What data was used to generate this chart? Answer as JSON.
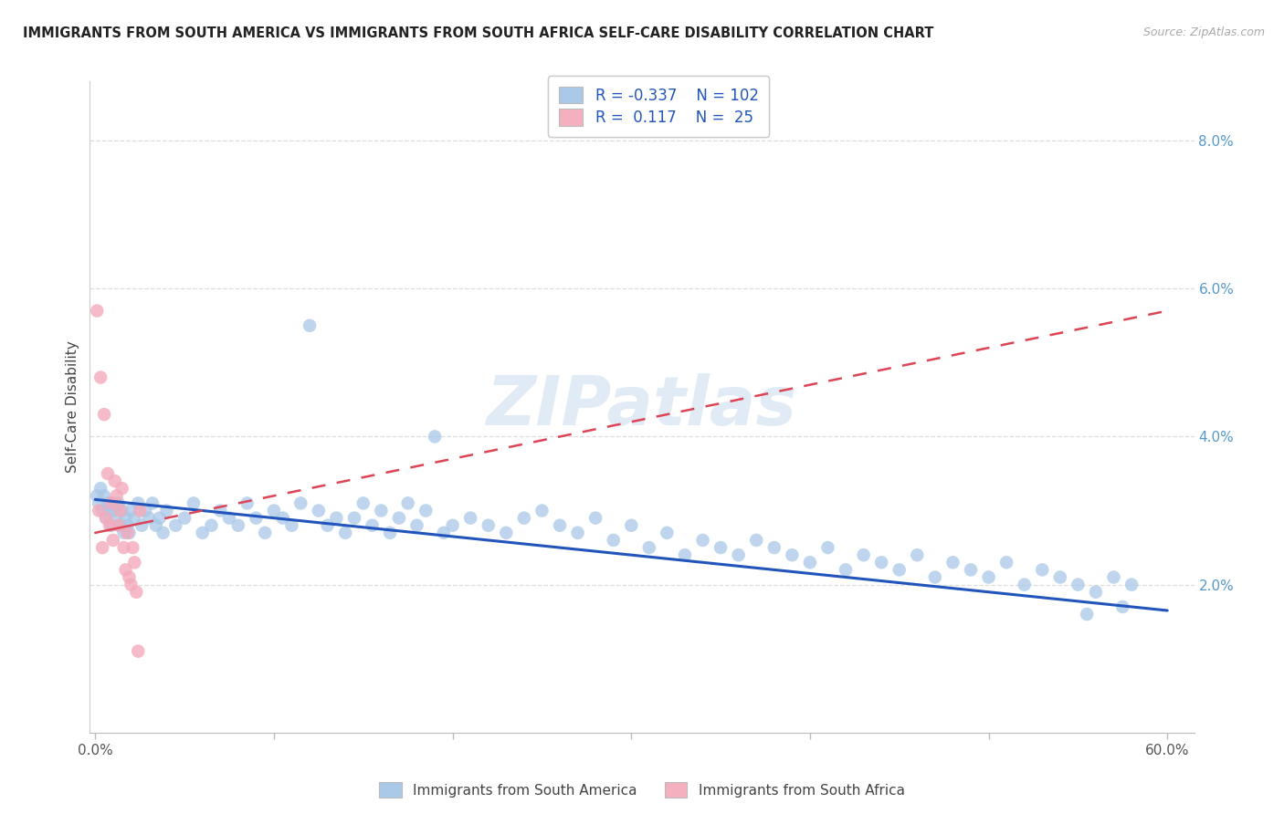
{
  "title": "IMMIGRANTS FROM SOUTH AMERICA VS IMMIGRANTS FROM SOUTH AFRICA SELF-CARE DISABILITY CORRELATION CHART",
  "source": "Source: ZipAtlas.com",
  "ylabel": "Self-Care Disability",
  "xlim": [
    -0.003,
    0.615
  ],
  "ylim": [
    0.0,
    0.088
  ],
  "xtick_vals": [
    0.0,
    0.1,
    0.2,
    0.3,
    0.4,
    0.5,
    0.6
  ],
  "xticklabels": [
    "0.0%",
    "",
    "",
    "",
    "",
    "",
    "60.0%"
  ],
  "ytick_vals": [
    0.0,
    0.02,
    0.04,
    0.06,
    0.08
  ],
  "yticklabels": [
    "",
    "2.0%",
    "4.0%",
    "6.0%",
    "8.0%"
  ],
  "blue_scatter_color": "#a8c8e8",
  "pink_scatter_color": "#f4aabb",
  "blue_line_color": "#2255bb",
  "pink_line_color": "#dd4455",
  "legend_blue_R": "-0.337",
  "legend_blue_N": "102",
  "legend_pink_R": "0.117",
  "legend_pink_N": "25",
  "watermark": "ZIPatlas",
  "grid_color": "#dddddd",
  "title_color": "#222222",
  "source_color": "#aaaaaa",
  "tick_color": "#5599cc",
  "bottom_legend_labels": [
    "Immigrants from South America",
    "Immigrants from South Africa"
  ],
  "sa_x": [
    0.001,
    0.002,
    0.003,
    0.004,
    0.005,
    0.006,
    0.007,
    0.008,
    0.009,
    0.01,
    0.011,
    0.012,
    0.013,
    0.014,
    0.015,
    0.016,
    0.017,
    0.018,
    0.019,
    0.02,
    0.022,
    0.024,
    0.026,
    0.028,
    0.03,
    0.032,
    0.034,
    0.036,
    0.038,
    0.04,
    0.045,
    0.05,
    0.055,
    0.06,
    0.065,
    0.07,
    0.075,
    0.08,
    0.085,
    0.09,
    0.095,
    0.1,
    0.105,
    0.11,
    0.115,
    0.12,
    0.125,
    0.13,
    0.135,
    0.14,
    0.145,
    0.15,
    0.155,
    0.16,
    0.165,
    0.17,
    0.175,
    0.18,
    0.185,
    0.19,
    0.195,
    0.2,
    0.21,
    0.22,
    0.23,
    0.24,
    0.25,
    0.26,
    0.27,
    0.28,
    0.29,
    0.3,
    0.31,
    0.32,
    0.33,
    0.34,
    0.35,
    0.36,
    0.37,
    0.38,
    0.39,
    0.4,
    0.41,
    0.42,
    0.43,
    0.44,
    0.45,
    0.46,
    0.47,
    0.48,
    0.49,
    0.5,
    0.51,
    0.52,
    0.53,
    0.54,
    0.55,
    0.56,
    0.57,
    0.58,
    0.555,
    0.575
  ],
  "sa_y": [
    0.032,
    0.031,
    0.033,
    0.03,
    0.032,
    0.029,
    0.031,
    0.03,
    0.028,
    0.031,
    0.03,
    0.029,
    0.031,
    0.028,
    0.03,
    0.027,
    0.029,
    0.028,
    0.027,
    0.03,
    0.029,
    0.031,
    0.028,
    0.03,
    0.029,
    0.031,
    0.028,
    0.029,
    0.027,
    0.03,
    0.028,
    0.029,
    0.031,
    0.027,
    0.028,
    0.03,
    0.029,
    0.028,
    0.031,
    0.029,
    0.027,
    0.03,
    0.029,
    0.028,
    0.031,
    0.055,
    0.03,
    0.028,
    0.029,
    0.027,
    0.029,
    0.031,
    0.028,
    0.03,
    0.027,
    0.029,
    0.031,
    0.028,
    0.03,
    0.04,
    0.027,
    0.028,
    0.029,
    0.028,
    0.027,
    0.029,
    0.03,
    0.028,
    0.027,
    0.029,
    0.026,
    0.028,
    0.025,
    0.027,
    0.024,
    0.026,
    0.025,
    0.024,
    0.026,
    0.025,
    0.024,
    0.023,
    0.025,
    0.022,
    0.024,
    0.023,
    0.022,
    0.024,
    0.021,
    0.023,
    0.022,
    0.021,
    0.023,
    0.02,
    0.022,
    0.021,
    0.02,
    0.019,
    0.021,
    0.02,
    0.016,
    0.017
  ],
  "sf_x": [
    0.001,
    0.002,
    0.003,
    0.004,
    0.005,
    0.006,
    0.007,
    0.008,
    0.009,
    0.01,
    0.011,
    0.012,
    0.013,
    0.014,
    0.015,
    0.016,
    0.017,
    0.018,
    0.019,
    0.02,
    0.021,
    0.022,
    0.023,
    0.024,
    0.025
  ],
  "sf_y": [
    0.057,
    0.03,
    0.048,
    0.025,
    0.043,
    0.029,
    0.035,
    0.028,
    0.031,
    0.026,
    0.034,
    0.032,
    0.028,
    0.03,
    0.033,
    0.025,
    0.022,
    0.027,
    0.021,
    0.02,
    0.025,
    0.023,
    0.019,
    0.011,
    0.03
  ],
  "blue_line_x0": 0.0,
  "blue_line_y0": 0.0315,
  "blue_line_x1": 0.6,
  "blue_line_y1": 0.0165,
  "pink_line_x0": 0.0,
  "pink_line_y0": 0.027,
  "pink_line_x1": 0.6,
  "pink_line_y1": 0.057
}
